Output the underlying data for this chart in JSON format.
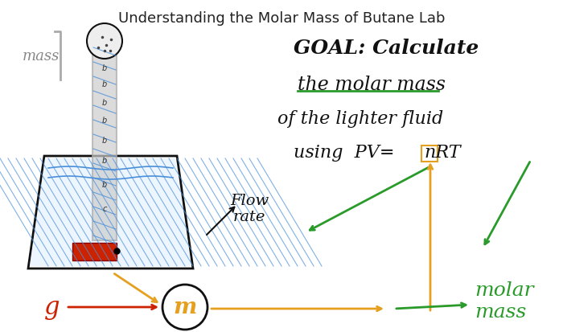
{
  "title": "Understanding the Molar Mass of Butane Lab",
  "title_fontsize": 13,
  "title_color": "#222222",
  "background_color": "#ffffff",
  "text_goal": "GOAL: Calculate",
  "text_line2": "the molar mass",
  "text_line3": "of the lighter fluid",
  "text_line4": "using  PV=□nRT",
  "text_flow": "Flow\nrate",
  "text_mass": "mass",
  "text_g": "g",
  "text_m": "m",
  "text_molar": "molar\nmass",
  "water_color": "#4a90d9",
  "red_lighter_color": "#cc2200",
  "gray_tube_color": "#aaaaaa",
  "orange_arrow_color": "#e6a020",
  "green_arrow_color": "#2a9a2a",
  "black_color": "#111111",
  "green_underline_color": "#2a9a2a"
}
